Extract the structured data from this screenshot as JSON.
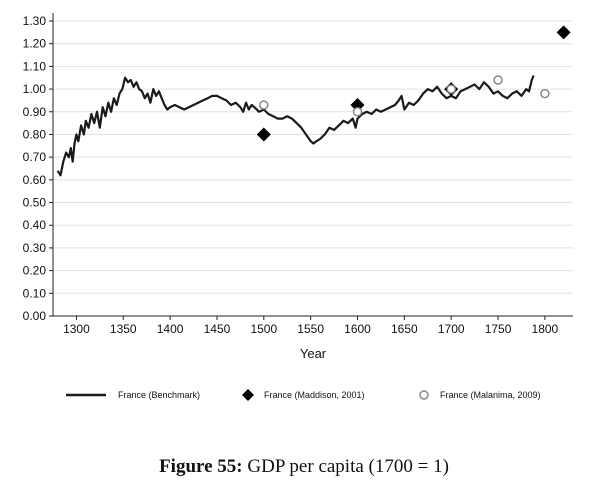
{
  "figure": {
    "label": "Figure 55:",
    "caption": "GDP per capita (1700 = 1)"
  },
  "chart_data": {
    "type": "line",
    "xlabel": "Year",
    "ylabel": "",
    "xlim": [
      1275,
      1830
    ],
    "ylim": [
      0,
      1.3
    ],
    "x_ticks": [
      1300,
      1350,
      1400,
      1450,
      1500,
      1550,
      1600,
      1650,
      1700,
      1750,
      1800
    ],
    "y_ticks": [
      0,
      0.1,
      0.2,
      0.3,
      0.4,
      0.5,
      0.6,
      0.7,
      0.8,
      0.9,
      1.0,
      1.1,
      1.2,
      1.3
    ],
    "y_tick_labels": [
      "0.00",
      "0.10",
      "0.20",
      "0.30",
      "0.40",
      "0.50",
      "0.60",
      "0.70",
      "0.80",
      "0.90",
      "1.00",
      "1.10",
      "1.20",
      "1.30"
    ],
    "grid": "horizontal",
    "legend_position": "bottom",
    "series": [
      {
        "name": "France (Benchmark)",
        "style": "line",
        "color": "#1a1a1a",
        "x": [
          1280,
          1283,
          1286,
          1289,
          1292,
          1294,
          1296,
          1298,
          1300,
          1302,
          1305,
          1308,
          1310,
          1313,
          1316,
          1319,
          1322,
          1325,
          1328,
          1331,
          1334,
          1337,
          1340,
          1343,
          1346,
          1349,
          1352,
          1355,
          1358,
          1361,
          1364,
          1367,
          1370,
          1373,
          1376,
          1379,
          1382,
          1385,
          1388,
          1391,
          1394,
          1397,
          1400,
          1405,
          1410,
          1415,
          1420,
          1425,
          1430,
          1435,
          1440,
          1445,
          1450,
          1455,
          1460,
          1465,
          1470,
          1475,
          1478,
          1481,
          1484,
          1487,
          1490,
          1495,
          1500,
          1505,
          1510,
          1515,
          1520,
          1525,
          1530,
          1535,
          1540,
          1545,
          1550,
          1553,
          1556,
          1560,
          1565,
          1570,
          1575,
          1580,
          1585,
          1590,
          1595,
          1598,
          1600,
          1605,
          1610,
          1615,
          1620,
          1625,
          1630,
          1635,
          1640,
          1644,
          1647,
          1650,
          1655,
          1660,
          1665,
          1670,
          1675,
          1680,
          1685,
          1690,
          1695,
          1700,
          1705,
          1710,
          1715,
          1720,
          1725,
          1730,
          1735,
          1740,
          1745,
          1750,
          1755,
          1760,
          1765,
          1770,
          1775,
          1780,
          1783,
          1786,
          1788
        ],
        "y": [
          0.64,
          0.62,
          0.68,
          0.72,
          0.7,
          0.74,
          0.68,
          0.76,
          0.8,
          0.77,
          0.84,
          0.8,
          0.86,
          0.83,
          0.89,
          0.85,
          0.9,
          0.83,
          0.92,
          0.88,
          0.94,
          0.9,
          0.96,
          0.93,
          0.98,
          1.0,
          1.05,
          1.03,
          1.04,
          1.01,
          1.03,
          1.0,
          0.99,
          0.96,
          0.98,
          0.94,
          1.0,
          0.97,
          0.99,
          0.96,
          0.93,
          0.91,
          0.92,
          0.93,
          0.92,
          0.91,
          0.92,
          0.93,
          0.94,
          0.95,
          0.96,
          0.97,
          0.97,
          0.96,
          0.95,
          0.93,
          0.94,
          0.92,
          0.9,
          0.94,
          0.91,
          0.93,
          0.92,
          0.9,
          0.91,
          0.89,
          0.88,
          0.87,
          0.87,
          0.88,
          0.87,
          0.85,
          0.83,
          0.8,
          0.77,
          0.76,
          0.77,
          0.78,
          0.8,
          0.83,
          0.82,
          0.84,
          0.86,
          0.85,
          0.87,
          0.83,
          0.87,
          0.89,
          0.9,
          0.89,
          0.91,
          0.9,
          0.91,
          0.92,
          0.93,
          0.95,
          0.97,
          0.91,
          0.94,
          0.93,
          0.95,
          0.98,
          1.0,
          0.99,
          1.01,
          0.98,
          0.96,
          0.97,
          0.96,
          0.99,
          1.0,
          1.01,
          1.02,
          1.0,
          1.03,
          1.01,
          0.98,
          0.99,
          0.97,
          0.96,
          0.98,
          0.99,
          0.97,
          1.0,
          0.99,
          1.04,
          1.06
        ]
      },
      {
        "name": "France (Maddison, 2001)",
        "style": "diamond",
        "color": "#000000",
        "x": [
          1500,
          1600,
          1700,
          1820
        ],
        "y": [
          0.8,
          0.93,
          1.0,
          1.25
        ]
      },
      {
        "name": "France (Malanima, 2009)",
        "style": "circle",
        "color": "#888888",
        "x": [
          1500,
          1600,
          1700,
          1750,
          1800
        ],
        "y": [
          0.93,
          0.9,
          1.0,
          1.04,
          0.98
        ]
      }
    ]
  }
}
